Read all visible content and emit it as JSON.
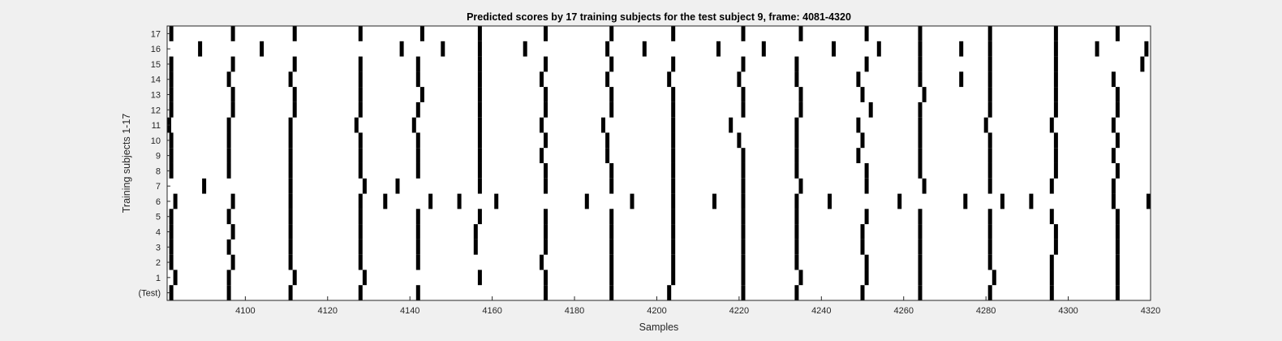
{
  "window": {
    "background": "#f0f0f0"
  },
  "chart_data": {
    "type": "raster",
    "title": "Predicted scores by 17 training subjects for the test subject 9, frame: 4081-4320",
    "xlabel": "Samples",
    "ylabel": "Training subjects 1-17",
    "xlim": [
      4081,
      4320
    ],
    "xticks": [
      4100,
      4120,
      4140,
      4160,
      4180,
      4200,
      4220,
      4240,
      4260,
      4280,
      4300,
      4320
    ],
    "rows": [
      "(Test)",
      "1",
      "2",
      "3",
      "4",
      "5",
      "6",
      "7",
      "8",
      "9",
      "10",
      "11",
      "12",
      "13",
      "14",
      "15",
      "16",
      "17"
    ],
    "grid": false,
    "colors": {
      "mark": "#000000",
      "plot_background": "#ffffff",
      "axis": "#262626"
    },
    "series": [
      {
        "row": "(Test)",
        "x": [
          4082,
          4096,
          4111,
          4128,
          4142,
          4173,
          4189,
          4203,
          4221,
          4234,
          4250,
          4264,
          4281,
          4296,
          4312
        ]
      },
      {
        "row": "1",
        "x": [
          4083,
          4096,
          4112,
          4129,
          4157,
          4173,
          4189,
          4204,
          4221,
          4235,
          4251,
          4264,
          4282,
          4296,
          4312
        ]
      },
      {
        "row": "2",
        "x": [
          4082,
          4097,
          4111,
          4128,
          4142,
          4172,
          4189,
          4204,
          4221,
          4234,
          4251,
          4264,
          4281,
          4296,
          4312
        ]
      },
      {
        "row": "3",
        "x": [
          4082,
          4096,
          4111,
          4128,
          4142,
          4156,
          4173,
          4189,
          4204,
          4221,
          4234,
          4250,
          4264,
          4281,
          4297,
          4312
        ]
      },
      {
        "row": "4",
        "x": [
          4082,
          4097,
          4111,
          4128,
          4142,
          4156,
          4173,
          4189,
          4204,
          4221,
          4234,
          4250,
          4264,
          4281,
          4297,
          4312
        ]
      },
      {
        "row": "5",
        "x": [
          4082,
          4096,
          4111,
          4128,
          4142,
          4157,
          4173,
          4189,
          4204,
          4221,
          4234,
          4251,
          4264,
          4281,
          4296,
          4312
        ]
      },
      {
        "row": "6",
        "x": [
          4083,
          4097,
          4111,
          4128,
          4134,
          4145,
          4152,
          4161,
          4183,
          4194,
          4204,
          4214,
          4221,
          4234,
          4242,
          4259,
          4275,
          4284,
          4291,
          4311,
          4320
        ]
      },
      {
        "row": "7",
        "x": [
          4090,
          4111,
          4129,
          4137,
          4157,
          4173,
          4189,
          4204,
          4221,
          4235,
          4251,
          4265,
          4281,
          4296,
          4311
        ]
      },
      {
        "row": "8",
        "x": [
          4082,
          4096,
          4111,
          4128,
          4142,
          4157,
          4173,
          4189,
          4204,
          4221,
          4234,
          4251,
          4264,
          4281,
          4297,
          4312
        ]
      },
      {
        "row": "9",
        "x": [
          4082,
          4096,
          4111,
          4128,
          4142,
          4157,
          4172,
          4188,
          4204,
          4221,
          4234,
          4249,
          4264,
          4281,
          4297,
          4311
        ]
      },
      {
        "row": "10",
        "x": [
          4082,
          4096,
          4111,
          4128,
          4142,
          4157,
          4173,
          4188,
          4204,
          4220,
          4234,
          4250,
          4264,
          4281,
          4297,
          4312
        ]
      },
      {
        "row": "11",
        "x": [
          4081,
          4096,
          4111,
          4127,
          4141,
          4157,
          4172,
          4187,
          4204,
          4218,
          4234,
          4249,
          4264,
          4280,
          4296,
          4311
        ]
      },
      {
        "row": "12",
        "x": [
          4082,
          4097,
          4112,
          4128,
          4142,
          4157,
          4173,
          4189,
          4204,
          4221,
          4235,
          4252,
          4264,
          4281,
          4297,
          4312
        ]
      },
      {
        "row": "13",
        "x": [
          4082,
          4097,
          4112,
          4128,
          4143,
          4157,
          4173,
          4189,
          4204,
          4221,
          4235,
          4250,
          4265,
          4281,
          4297,
          4312
        ]
      },
      {
        "row": "14",
        "x": [
          4082,
          4096,
          4111,
          4128,
          4142,
          4157,
          4172,
          4188,
          4203,
          4220,
          4234,
          4249,
          4264,
          4274,
          4281,
          4297,
          4311
        ]
      },
      {
        "row": "15",
        "x": [
          4082,
          4097,
          4112,
          4128,
          4142,
          4157,
          4173,
          4189,
          4204,
          4221,
          4234,
          4251,
          4264,
          4281,
          4297,
          4318
        ]
      },
      {
        "row": "16",
        "x": [
          4089,
          4104,
          4138,
          4148,
          4157,
          4168,
          4188,
          4197,
          4215,
          4226,
          4243,
          4254,
          4264,
          4274,
          4281,
          4297,
          4307,
          4319
        ]
      },
      {
        "row": "17",
        "x": [
          4082,
          4097,
          4112,
          4128,
          4143,
          4157,
          4173,
          4189,
          4204,
          4221,
          4235,
          4251,
          4264,
          4281,
          4297,
          4312
        ]
      }
    ]
  }
}
